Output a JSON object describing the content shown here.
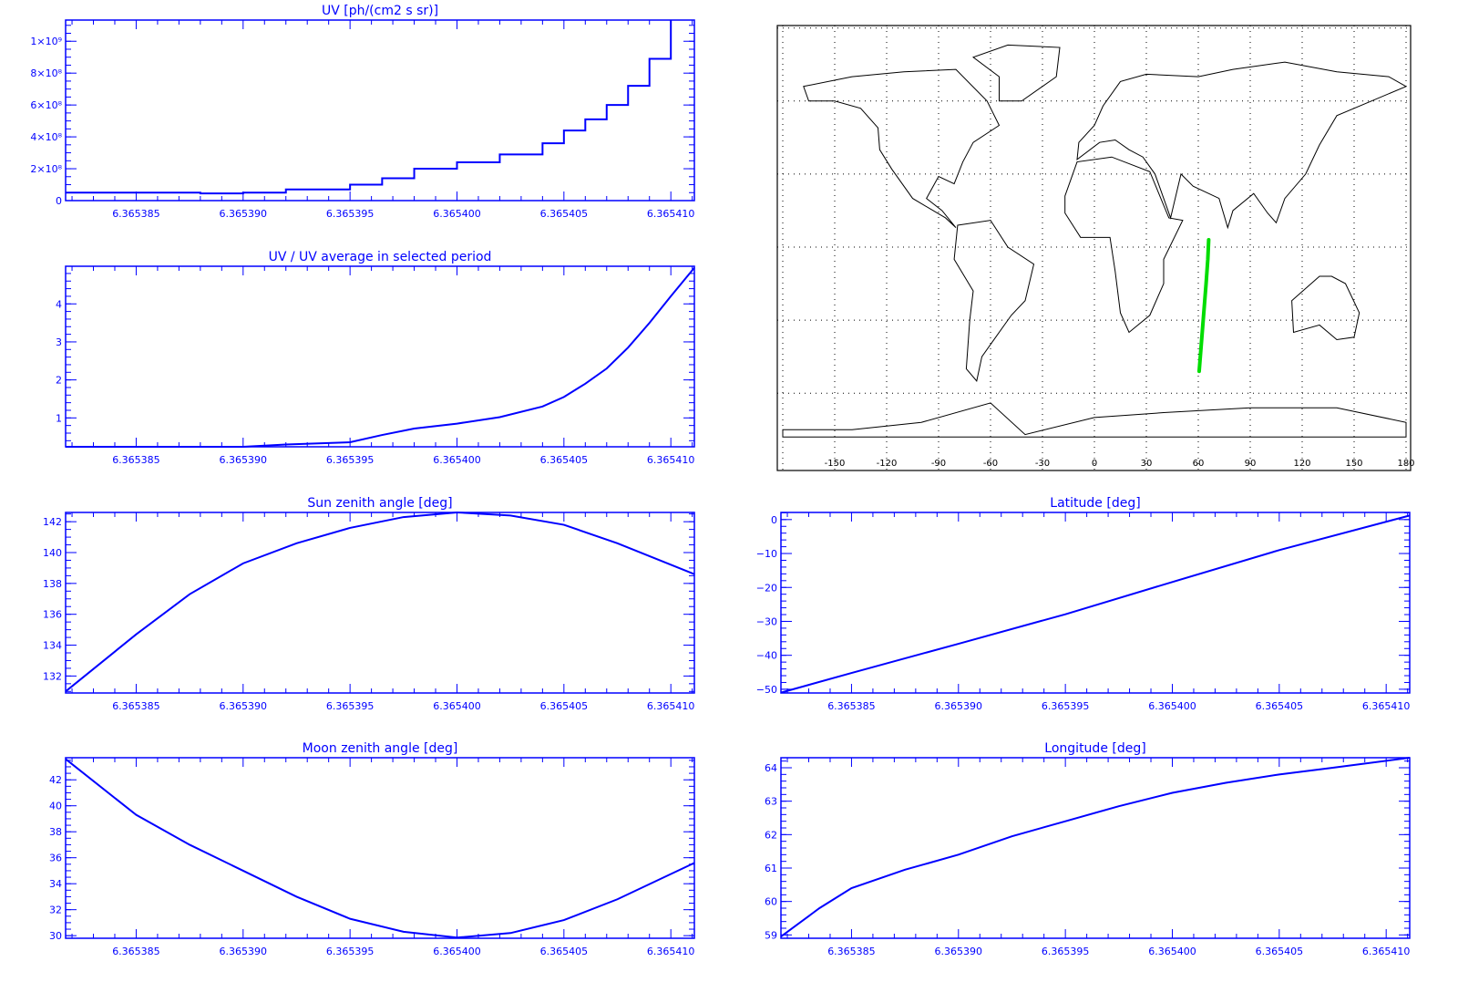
{
  "colors": {
    "axis": "#0000ff",
    "line": "#0000ff",
    "track": "#00dd00",
    "map": "#000000"
  },
  "chart_data": [
    {
      "id": "uv",
      "type": "line",
      "title": "UV [ph/(cm2 s sr)]",
      "xlim": [
        6.3653817,
        6.3654111
      ],
      "ylim": [
        0,
        1133000000.0
      ],
      "xticks": [
        6.365385,
        6.36539,
        6.365395,
        6.3654,
        6.365405,
        6.36541
      ],
      "xtick_labels": [
        "6.365385",
        "6.365390",
        "6.365395",
        "6.365400",
        "6.365405",
        "6.365410"
      ],
      "yticks": [
        0,
        200000000.0,
        400000000.0,
        600000000.0,
        800000000.0,
        1000000000.0
      ],
      "ytick_labels": [
        "0",
        "2×10⁸",
        "4×10⁸",
        "6×10⁸",
        "8×10⁸",
        "1×10⁹"
      ],
      "yminor": 50000000.0,
      "step": true,
      "x": [
        6.3653817,
        6.365386,
        6.365388,
        6.36539,
        6.365392,
        6.365395,
        6.3653965,
        6.365398,
        6.3654,
        6.365402,
        6.365404,
        6.365405,
        6.365406,
        6.365407,
        6.365408,
        6.365409,
        6.36541
      ],
      "y": [
        50000000.0,
        50000000.0,
        45000000.0,
        50000000.0,
        70000000.0,
        100000000.0,
        140000000.0,
        200000000.0,
        240000000.0,
        290000000.0,
        360000000.0,
        440000000.0,
        510000000.0,
        600000000.0,
        720000000.0,
        890000000.0,
        1130000000.0
      ]
    },
    {
      "id": "uv-ratio",
      "type": "line",
      "title": "UV / UV average in selected period",
      "xlim": [
        6.3653817,
        6.3654111
      ],
      "ylim": [
        0.24,
        4.99
      ],
      "xticks": [
        6.365385,
        6.36539,
        6.365395,
        6.3654,
        6.365405,
        6.36541
      ],
      "xtick_labels": [
        "6.365385",
        "6.365390",
        "6.365395",
        "6.365400",
        "6.365405",
        "6.365410"
      ],
      "yticks": [
        1,
        2,
        3,
        4
      ],
      "ytick_labels": [
        "1",
        "2",
        "3",
        "4"
      ],
      "yminor": 0.2,
      "x": [
        6.3653817,
        6.36539,
        6.365392,
        6.365395,
        6.3653965,
        6.365398,
        6.3654,
        6.365402,
        6.365404,
        6.365405,
        6.365406,
        6.365407,
        6.365408,
        6.365409,
        6.36541,
        6.3654111
      ],
      "y": [
        0.24,
        0.24,
        0.3,
        0.36,
        0.55,
        0.72,
        0.85,
        1.02,
        1.3,
        1.55,
        1.9,
        2.3,
        2.85,
        3.5,
        4.2,
        4.95
      ]
    },
    {
      "id": "sun-zenith",
      "type": "line",
      "title": "Sun zenith angle [deg]",
      "xlim": [
        6.3653817,
        6.3654111
      ],
      "ylim": [
        130.9,
        142.6
      ],
      "xticks": [
        6.365385,
        6.36539,
        6.365395,
        6.3654,
        6.365405,
        6.36541
      ],
      "xtick_labels": [
        "6.365385",
        "6.365390",
        "6.365395",
        "6.365400",
        "6.365405",
        "6.365410"
      ],
      "yticks": [
        132,
        134,
        136,
        138,
        140,
        142
      ],
      "ytick_labels": [
        "132",
        "134",
        "136",
        "138",
        "140",
        "142"
      ],
      "yminor": 0.5,
      "x": [
        6.3653817,
        6.365385,
        6.3653875,
        6.36539,
        6.3653925,
        6.365395,
        6.3653975,
        6.3654,
        6.3654025,
        6.365405,
        6.3654075,
        6.3654111
      ],
      "y": [
        131.0,
        134.7,
        137.3,
        139.3,
        140.6,
        141.6,
        142.3,
        142.6,
        142.4,
        141.8,
        140.6,
        138.6
      ]
    },
    {
      "id": "moon-zenith",
      "type": "line",
      "title": "Moon zenith angle [deg]",
      "xlim": [
        6.3653817,
        6.3654111
      ],
      "ylim": [
        29.8,
        43.7
      ],
      "xticks": [
        6.365385,
        6.36539,
        6.365395,
        6.3654,
        6.365405,
        6.36541
      ],
      "xtick_labels": [
        "6.365385",
        "6.365390",
        "6.365395",
        "6.365400",
        "6.365405",
        "6.365410"
      ],
      "yticks": [
        30,
        32,
        34,
        36,
        38,
        40,
        42
      ],
      "ytick_labels": [
        "30",
        "32",
        "34",
        "36",
        "38",
        "40",
        "42"
      ],
      "yminor": 0.5,
      "x": [
        6.3653817,
        6.365385,
        6.3653875,
        6.36539,
        6.3653925,
        6.365395,
        6.3653975,
        6.3654,
        6.3654025,
        6.365405,
        6.3654075,
        6.3654111
      ],
      "y": [
        43.6,
        39.3,
        37.0,
        35.0,
        33.0,
        31.3,
        30.3,
        29.85,
        30.2,
        31.2,
        32.8,
        35.6
      ]
    },
    {
      "id": "latitude",
      "type": "line",
      "title": "Latitude [deg]",
      "xlim": [
        6.3653817,
        6.3654111
      ],
      "ylim": [
        -51.1,
        2.1
      ],
      "xticks": [
        6.365385,
        6.36539,
        6.365395,
        6.3654,
        6.365405,
        6.36541
      ],
      "xtick_labels": [
        "6.365385",
        "6.365390",
        "6.365395",
        "6.365400",
        "6.365405",
        "6.365410"
      ],
      "yticks": [
        -50,
        -40,
        -30,
        -20,
        -10,
        0
      ],
      "ytick_labels": [
        "−50",
        "−40",
        "−30",
        "−20",
        "−10",
        "0"
      ],
      "yminor": 2,
      "x": [
        6.3653817,
        6.365385,
        6.36539,
        6.365395,
        6.3654,
        6.365405,
        6.3654111
      ],
      "y": [
        -51.0,
        -45.2,
        -36.6,
        -27.9,
        -18.4,
        -9.0,
        1.2
      ]
    },
    {
      "id": "longitude",
      "type": "line",
      "title": "Longitude [deg]",
      "xlim": [
        6.3653817,
        6.3654111
      ],
      "ylim": [
        58.9,
        64.3
      ],
      "xticks": [
        6.365385,
        6.36539,
        6.365395,
        6.3654,
        6.365405,
        6.36541
      ],
      "xtick_labels": [
        "6.365385",
        "6.365390",
        "6.365395",
        "6.365400",
        "6.365405",
        "6.365410"
      ],
      "yticks": [
        59,
        60,
        61,
        62,
        63,
        64
      ],
      "ytick_labels": [
        "59",
        "60",
        "61",
        "62",
        "63",
        "64"
      ],
      "yminor": 0.2,
      "x": [
        6.3653817,
        6.3653835,
        6.365385,
        6.3653875,
        6.36539,
        6.3653925,
        6.365395,
        6.3653975,
        6.3654,
        6.3654025,
        6.365405,
        6.3654075,
        6.3654111
      ],
      "y": [
        58.95,
        59.8,
        60.4,
        60.95,
        61.4,
        61.95,
        62.4,
        62.85,
        63.25,
        63.55,
        63.8,
        64.0,
        64.3
      ]
    }
  ],
  "map": {
    "xtick_labels": [
      "-150",
      "-120",
      "-90",
      "-60",
      "-30",
      "0",
      "30",
      "60",
      "90",
      "120",
      "150",
      "180"
    ],
    "xticks": [
      -150,
      -120,
      -90,
      -60,
      -30,
      0,
      30,
      60,
      90,
      120,
      150,
      180
    ],
    "track": {
      "lon": [
        60.5,
        61.5,
        62.5,
        63.5,
        64.5,
        65.5,
        66
      ],
      "lat": [
        -51,
        -42,
        -33,
        -24,
        -15,
        -5,
        3
      ]
    }
  }
}
